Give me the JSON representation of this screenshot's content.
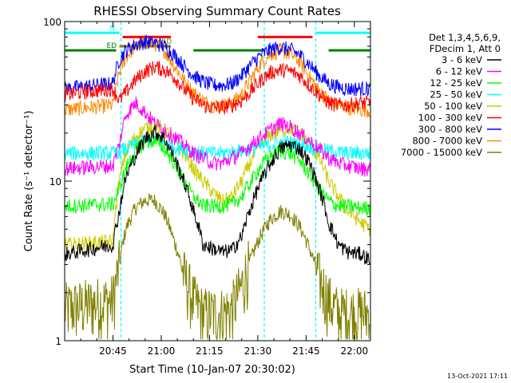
{
  "chart_data": {
    "type": "line",
    "title": "RHESSI Observing Summary Count Rates",
    "xlabel": "Start Time (10-Jan-07 20:30:02)",
    "ylabel": "Count Rate (s⁻¹ detector⁻¹)",
    "ylog": true,
    "ylim": [
      1,
      100
    ],
    "xlim_minutes": [
      0,
      95
    ],
    "x_unit": "minutes after 20:30:02",
    "x_ticks": [
      {
        "m": 15,
        "label": "20:45"
      },
      {
        "m": 30,
        "label": "21:00"
      },
      {
        "m": 45,
        "label": "21:15"
      },
      {
        "m": 60,
        "label": "21:30"
      },
      {
        "m": 75,
        "label": "21:45"
      },
      {
        "m": 90,
        "label": "22:00"
      }
    ],
    "y_ticks": [
      {
        "v": 1,
        "label": "1"
      },
      {
        "v": 10,
        "label": "10"
      },
      {
        "v": 100,
        "label": "100"
      }
    ],
    "legend_header": [
      "Det 1,3,4,5,6,9,",
      "FDecim 1, Att 0"
    ],
    "legend_position": "right",
    "series": [
      {
        "name": "3 - 6 keV",
        "color": "#000000",
        "x": [
          0,
          15,
          17,
          19,
          22,
          25,
          28,
          31,
          34,
          37,
          40,
          43,
          46,
          49,
          52,
          55,
          58,
          61,
          64,
          67,
          70,
          73,
          76,
          79,
          82,
          85,
          88,
          92,
          95
        ],
        "y": [
          3.5,
          4.0,
          6.5,
          10.5,
          14.5,
          18.5,
          20.5,
          18.5,
          14,
          10,
          6.5,
          4,
          3.8,
          3.6,
          3.7,
          4.5,
          7,
          10,
          13,
          16,
          17,
          16,
          13,
          9,
          5.5,
          4,
          3.6,
          3.5,
          3.2
        ]
      },
      {
        "name": "6 - 12 keV",
        "color": "#ff00ff",
        "x": [
          0,
          15,
          17,
          19,
          22,
          25,
          28,
          31,
          34,
          37,
          40,
          43,
          46,
          49,
          52,
          55,
          58,
          61,
          64,
          67,
          70,
          73,
          76,
          79,
          82,
          85,
          88,
          92,
          95
        ],
        "y": [
          12,
          12.5,
          17,
          26,
          31,
          27,
          23,
          21,
          19,
          17,
          15,
          14,
          13,
          13,
          14,
          15,
          17,
          19,
          21,
          23,
          22,
          20,
          18,
          16,
          14,
          13,
          12.5,
          12,
          12
        ]
      },
      {
        "name": "12 - 25 keV",
        "color": "#00ff00",
        "x": [
          0,
          15,
          17,
          19,
          22,
          25,
          28,
          31,
          34,
          37,
          40,
          43,
          46,
          49,
          52,
          55,
          58,
          61,
          64,
          67,
          70,
          73,
          76,
          79,
          82,
          85,
          88,
          92,
          95
        ],
        "y": [
          7,
          7.2,
          9,
          12,
          15.5,
          17.5,
          18,
          16,
          13,
          10,
          8,
          7,
          7,
          7,
          7.2,
          8,
          10,
          12.5,
          14.5,
          15.5,
          15,
          13.5,
          11,
          9,
          7.5,
          7,
          7,
          6.8,
          6.8
        ]
      },
      {
        "name": "25 - 50 keV",
        "color": "#00ffff",
        "x": [
          0,
          15,
          17,
          19,
          22,
          25,
          28,
          31,
          34,
          37,
          40,
          43,
          46,
          49,
          52,
          55,
          58,
          61,
          64,
          67,
          70,
          73,
          76,
          79,
          82,
          85,
          88,
          92,
          95
        ],
        "y": [
          15,
          15,
          15.5,
          16,
          17,
          18,
          18.5,
          17.5,
          16.5,
          16,
          15.5,
          15,
          15,
          15,
          15.2,
          15.5,
          16,
          16.5,
          17,
          17.5,
          17.5,
          17,
          16.5,
          16,
          15.5,
          15.2,
          15,
          15,
          15
        ]
      },
      {
        "name": "50 - 100 keV",
        "color": "#cccc00",
        "x": [
          0,
          15,
          17,
          19,
          22,
          25,
          28,
          31,
          34,
          37,
          40,
          43,
          46,
          49,
          52,
          55,
          58,
          61,
          64,
          67,
          70,
          73,
          76,
          79,
          82,
          85,
          88,
          92,
          95
        ],
        "y": [
          4,
          4.2,
          10,
          15,
          19,
          21.5,
          22.5,
          21,
          18,
          15,
          12,
          10,
          8.5,
          7.5,
          8,
          10,
          13.5,
          17,
          19.5,
          21,
          21.5,
          20,
          17,
          14,
          10,
          8,
          6.5,
          5.5,
          5
        ]
      },
      {
        "name": "100 - 300 keV",
        "color": "#ff0000",
        "x": [
          0,
          15,
          17,
          19,
          22,
          25,
          28,
          31,
          34,
          37,
          40,
          43,
          46,
          49,
          52,
          55,
          58,
          61,
          64,
          67,
          70,
          73,
          76,
          79,
          82,
          85,
          88,
          92,
          95
        ],
        "y": [
          35,
          38,
          32,
          36,
          43,
          49,
          52,
          50,
          45,
          38,
          33,
          30,
          29,
          29,
          30,
          32,
          37,
          43,
          48,
          50,
          49,
          46,
          40,
          35,
          31,
          30,
          30,
          31,
          31
        ]
      },
      {
        "name": "300 - 800 keV",
        "color": "#0000ff",
        "x": [
          0,
          15,
          17,
          19,
          22,
          25,
          28,
          31,
          34,
          37,
          40,
          43,
          46,
          49,
          52,
          55,
          58,
          61,
          64,
          67,
          70,
          73,
          76,
          79,
          82,
          85,
          88,
          92,
          95
        ],
        "y": [
          38,
          41,
          58,
          66,
          72,
          75,
          74,
          70,
          62,
          53,
          46,
          42,
          40,
          40,
          41,
          46,
          54,
          62,
          67,
          69,
          67,
          62,
          54,
          46,
          41,
          39,
          38,
          38,
          38
        ]
      },
      {
        "name": "800 - 7000 keV",
        "color": "#ff8800",
        "x": [
          0,
          15,
          17,
          19,
          22,
          25,
          28,
          31,
          34,
          37,
          40,
          43,
          46,
          49,
          52,
          55,
          58,
          61,
          64,
          67,
          70,
          73,
          76,
          79,
          82,
          85,
          88,
          92,
          95
        ],
        "y": [
          28,
          30,
          48,
          60,
          70,
          75,
          73,
          66,
          53,
          43,
          36,
          32,
          30,
          30,
          31,
          35,
          44,
          55,
          63,
          66,
          63,
          56,
          45,
          37,
          32,
          30,
          29,
          28,
          28
        ]
      },
      {
        "name": "7000 - 15000 keV",
        "color": "#808000",
        "x": [
          0,
          15,
          17,
          19,
          22,
          25,
          28,
          31,
          34,
          37,
          40,
          43,
          46,
          49,
          52,
          55,
          58,
          61,
          64,
          67,
          70,
          73,
          76,
          79,
          82,
          85,
          88,
          92,
          95
        ],
        "y": [
          1.6,
          1.8,
          3,
          5,
          6.8,
          7.6,
          7.6,
          6.2,
          4.2,
          2.6,
          1.8,
          1.5,
          1.5,
          1.5,
          1.6,
          2.2,
          3.3,
          4.6,
          5.8,
          6.5,
          6.2,
          5.2,
          3.8,
          2.5,
          1.8,
          1.5,
          1.5,
          1.5,
          1.5
        ]
      }
    ],
    "flag_bars": [
      {
        "name": "N",
        "label": "N",
        "color": "#00ffff",
        "segments": [
          [
            0,
            17
          ],
          [
            78,
            95
          ]
        ],
        "level": 85
      },
      {
        "name": "SAA/flare",
        "label": "",
        "color": "#ff0000",
        "segments": [
          [
            18,
            33
          ],
          [
            60,
            77
          ]
        ],
        "level": 80
      },
      {
        "name": "RD",
        "label": "RD",
        "color": "#808000",
        "segments": [
          [
            17,
            33
          ]
        ],
        "level": 70
      },
      {
        "name": "ED",
        "label": "ED",
        "color": "#008000",
        "segments": [
          [
            0,
            16
          ],
          [
            40,
            62
          ],
          [
            82,
            95
          ]
        ],
        "level": 66
      }
    ],
    "night_markers_minutes": [
      0,
      17.5,
      62,
      78,
      95
    ]
  },
  "timestamp": "13-Oct-2021 17:11"
}
